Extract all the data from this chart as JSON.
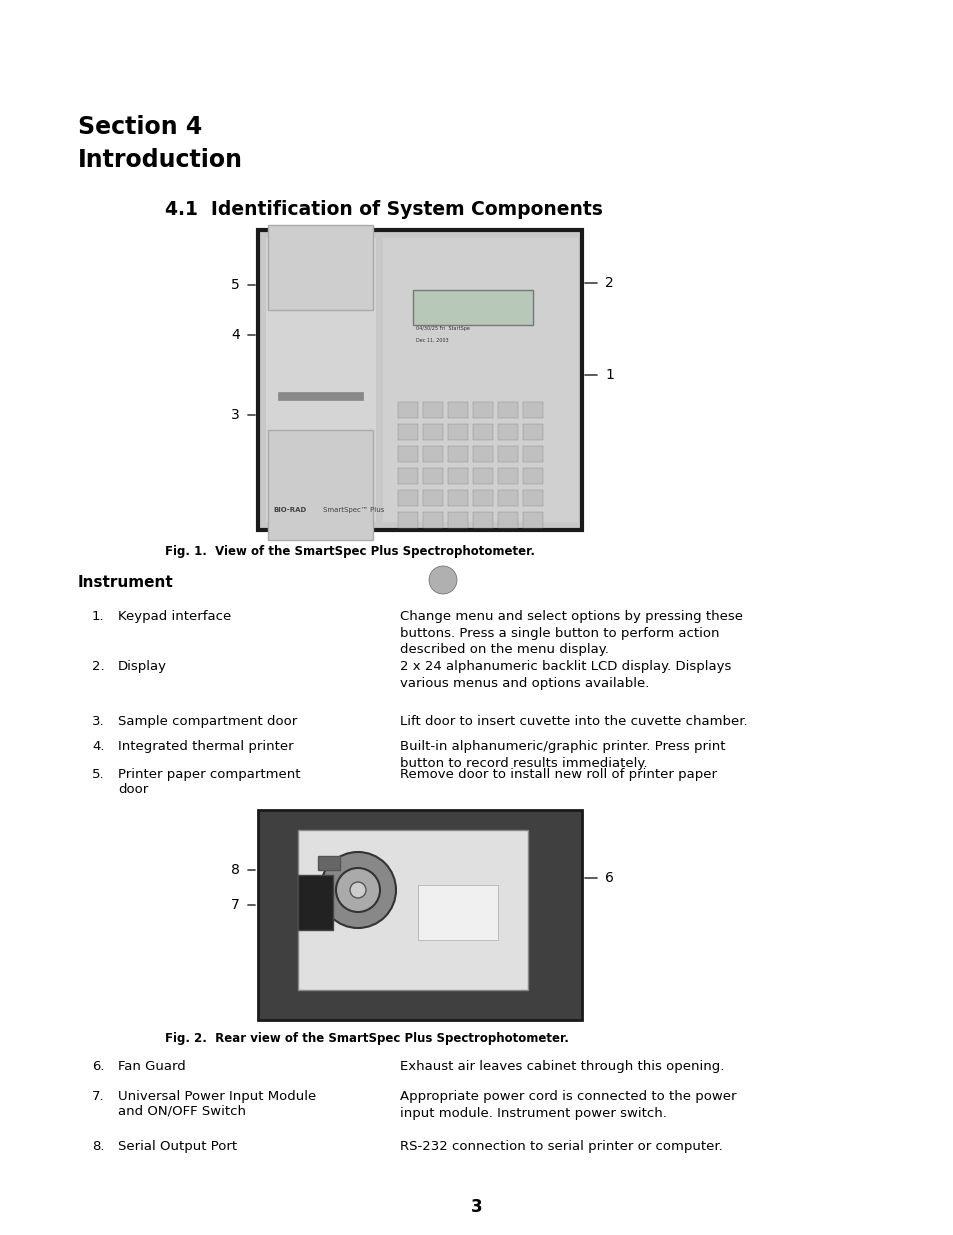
{
  "background_color": "#ffffff",
  "page_width": 9.54,
  "page_height": 12.35,
  "section_title_line1": "Section 4",
  "section_title_line2": "Introduction",
  "subsection_title": "4.1  Identification of System Components",
  "fig1_caption": "Fig. 1.  View of the SmartSpec Plus Spectrophotometer.",
  "instrument_heading": "Instrument",
  "instrument_items": [
    {
      "num": "1.",
      "label": "Keypad interface",
      "desc": "Change menu and select options by pressing these\nbuttons. Press a single button to perform action\ndescribed on the menu display."
    },
    {
      "num": "2.",
      "label": "Display",
      "desc": "2 x 24 alphanumeric backlit LCD display. Displays\nvarious menus and options available."
    },
    {
      "num": "3.",
      "label": "Sample compartment door",
      "desc": "Lift door to insert cuvette into the cuvette chamber."
    },
    {
      "num": "4.",
      "label": "Integrated thermal printer",
      "desc": "Built-in alphanumeric/graphic printer. Press print\nbutton to record results immediately."
    },
    {
      "num": "5.",
      "label": "Printer paper compartment\ndoor",
      "desc": "Remove door to install new roll of printer paper"
    }
  ],
  "fig2_caption": "Fig. 2.  Rear view of the SmartSpec Plus Spectrophotometer.",
  "rear_items": [
    {
      "num": "6.",
      "label": "Fan Guard",
      "desc": "Exhaust air leaves cabinet through this opening."
    },
    {
      "num": "7.",
      "label": "Universal Power Input Module\nand ON/OFF Switch",
      "desc": "Appropriate power cord is connected to the power\ninput module. Instrument power switch."
    },
    {
      "num": "8.",
      "label": "Serial Output Port",
      "desc": "RS-232 connection to serial printer or computer."
    }
  ],
  "page_number": "3"
}
